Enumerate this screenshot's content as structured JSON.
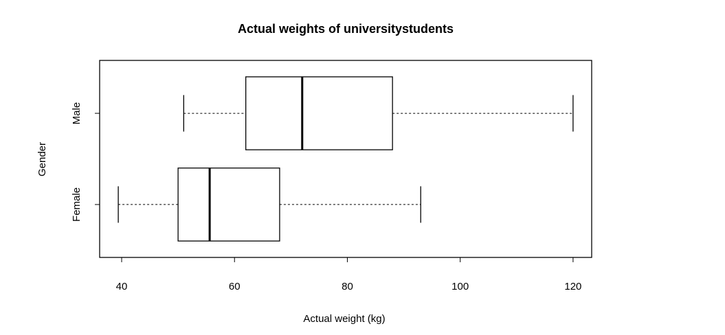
{
  "chart_data": {
    "type": "boxplot",
    "orientation": "horizontal",
    "title": "Actual weights of universitystudents",
    "xlabel": "Actual weight (kg)",
    "ylabel": "Gender",
    "categories": [
      "Female",
      "Male"
    ],
    "min": [
      39.4,
      51
    ],
    "q1": [
      50,
      62
    ],
    "median": [
      55.6,
      72
    ],
    "q3": [
      68,
      88
    ],
    "max": [
      93,
      120
    ],
    "xlim": [
      36.1,
      123.3
    ],
    "xticks": [
      40,
      60,
      80,
      100,
      120
    ]
  }
}
